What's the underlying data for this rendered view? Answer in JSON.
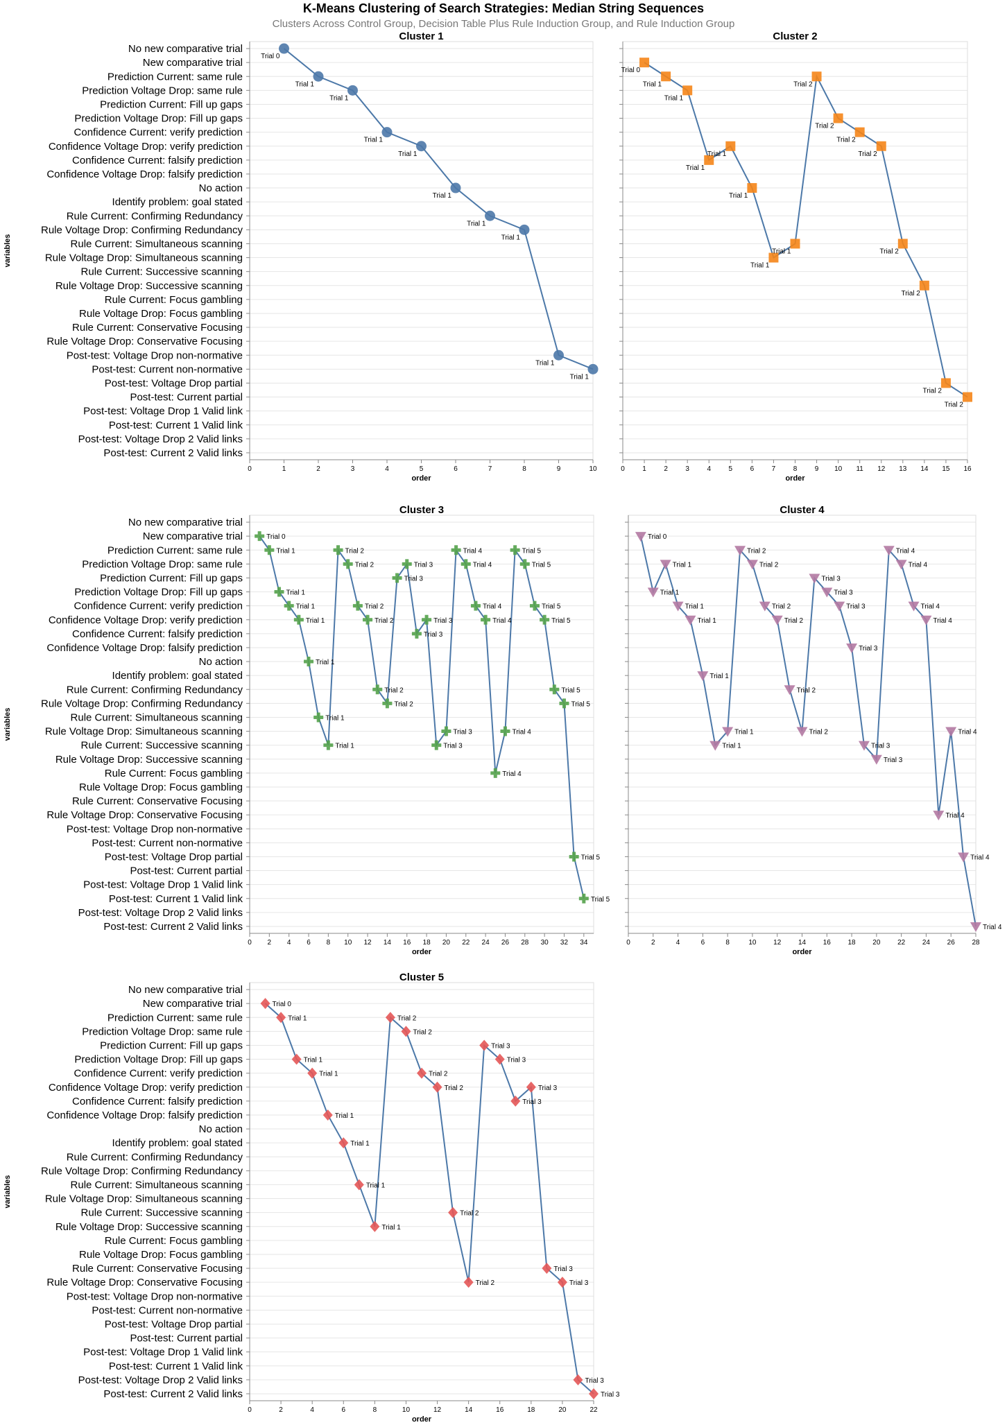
{
  "title": "K-Means Clustering of Search Strategies: Median String Sequences",
  "subtitle": "Clusters Across Control Group, Decision Table Plus Rule Induction Group, and Rule Induction Group",
  "chart_data": {
    "type": "line",
    "xlabel": "order",
    "ylabel": "variables",
    "line_color": "#4c78a8",
    "grid": true,
    "categories_default": [
      "No new comparative trial",
      "New comparative trial",
      "Prediction Current: same rule",
      "Prediction Voltage Drop: same rule",
      "Prediction Current: Fill up gaps",
      "Prediction Voltage Drop: Fill up gaps",
      "Confidence Current: verify prediction",
      "Confidence Voltage Drop: verify prediction",
      "Confidence Current: falsify prediction",
      "Confidence Voltage Drop: falsify prediction",
      "No action",
      "Identify problem: goal stated",
      "Rule Current: Confirming Redundancy",
      "Rule Voltage Drop: Confirming Redundancy",
      "Rule Current: Simultaneous scanning",
      "Rule Voltage Drop: Simultaneous scanning",
      "Rule Current: Successive scanning",
      "Rule Voltage Drop: Successive scanning",
      "Rule Current: Focus gambling",
      "Rule Voltage Drop: Focus gambling",
      "Rule Current: Conservative Focusing",
      "Rule Voltage Drop: Conservative Focusing",
      "Post-test: Voltage Drop non-normative",
      "Post-test: Current non-normative",
      "Post-test: Voltage Drop partial",
      "Post-test: Current partial",
      "Post-test: Voltage Drop 1 Valid link",
      "Post-test: Current 1 Valid link",
      "Post-test: Voltage Drop 2 Valid links",
      "Post-test: Current 2 Valid links"
    ],
    "categories_c1c2": [
      "No new comparative trial",
      "New comparative trial",
      "Prediction Current: same rule",
      "Prediction Voltage Drop: same rule",
      "Prediction Current: Fill up gaps",
      "Prediction Voltage Drop: Fill up gaps",
      "Confidence Current: verify prediction",
      "Confidence Voltage Drop: verify prediction",
      "Confidence Current: falsify prediction",
      "Confidence Voltage Drop: falsify prediction",
      "No action",
      "Identify problem: goal stated",
      "Rule Current: Confirming Redundancy",
      "Rule Voltage Drop: Confirming Redundancy",
      "Rule Current: Simultaneous scanning",
      "Rule Voltage Drop: Simultaneous scanning",
      "Rule Current: Successive scanning",
      "Rule Voltage Drop: Successive scanning",
      "Rule Current: Focus gambling",
      "Rule Voltage Drop: Focus gambling",
      "Rule Current: Conservative Focusing",
      "Rule Voltage Drop: Conservative Focusing",
      "Post-test: Voltage Drop non-normative",
      "Post-test: Current non-normative",
      "Post-test: Voltage Drop partial",
      "Post-test: Current partial",
      "Post-test: Voltage Drop 1 Valid link",
      "Post-test: Current 1 Valid link",
      "Post-test: Voltage Drop 2 Valid links",
      "Post-test: Current 2 Valid links"
    ],
    "panels": [
      {
        "title": "Cluster 1",
        "shape": "circle",
        "color": "#4c78a8",
        "xlim": [
          0,
          10
        ],
        "ticks": [
          0,
          1,
          2,
          3,
          4,
          5,
          6,
          7,
          8,
          9,
          10
        ],
        "label_side": "below-left",
        "points": [
          {
            "x": 1,
            "y": "No new comparative trial",
            "label": "Trial 0"
          },
          {
            "x": 2,
            "y": "Prediction Current: same rule",
            "label": "Trial 1"
          },
          {
            "x": 3,
            "y": "Prediction Voltage Drop: same rule",
            "label": "Trial 1"
          },
          {
            "x": 4,
            "y": "Confidence Current: verify prediction",
            "label": "Trial 1"
          },
          {
            "x": 5,
            "y": "Confidence Voltage Drop: verify prediction",
            "label": "Trial 1"
          },
          {
            "x": 6,
            "y": "No action",
            "label": "Trial 1"
          },
          {
            "x": 7,
            "y": "Rule Current: Confirming Redundancy",
            "label": "Trial 1"
          },
          {
            "x": 8,
            "y": "Rule Voltage Drop: Confirming Redundancy",
            "label": "Trial 1"
          },
          {
            "x": 9,
            "y": "Post-test: Voltage Drop non-normative",
            "label": "Trial 1"
          },
          {
            "x": 10,
            "y": "Post-test: Current non-normative",
            "label": "Trial 1"
          }
        ]
      },
      {
        "title": "Cluster 2",
        "shape": "square",
        "color": "#f58518",
        "xlim": [
          0,
          16
        ],
        "ticks": [
          0,
          1,
          2,
          3,
          4,
          5,
          6,
          7,
          8,
          9,
          10,
          11,
          12,
          13,
          14,
          15,
          16
        ],
        "label_side": "below-left",
        "points": [
          {
            "x": 1,
            "y": "New comparative trial",
            "label": "Trial 0"
          },
          {
            "x": 2,
            "y": "Prediction Current: same rule",
            "label": "Trial 1"
          },
          {
            "x": 3,
            "y": "Prediction Voltage Drop: same rule",
            "label": "Trial 1"
          },
          {
            "x": 4,
            "y": "Confidence Current: falsify prediction",
            "label": "Trial 1"
          },
          {
            "x": 5,
            "y": "Confidence Voltage Drop: verify prediction",
            "label": "Trial 1"
          },
          {
            "x": 6,
            "y": "No action",
            "label": "Trial 1"
          },
          {
            "x": 7,
            "y": "Rule Voltage Drop: Simultaneous scanning",
            "label": "Trial 1"
          },
          {
            "x": 8,
            "y": "Rule Current: Simultaneous scanning",
            "label": "Trial 1"
          },
          {
            "x": 9,
            "y": "Prediction Current: same rule",
            "label": "Trial 2"
          },
          {
            "x": 10,
            "y": "Prediction Voltage Drop: Fill up gaps",
            "label": "Trial 2"
          },
          {
            "x": 11,
            "y": "Confidence Current: verify prediction",
            "label": "Trial 2"
          },
          {
            "x": 12,
            "y": "Confidence Voltage Drop: verify prediction",
            "label": "Trial 2"
          },
          {
            "x": 13,
            "y": "Rule Current: Simultaneous scanning",
            "label": "Trial 2"
          },
          {
            "x": 14,
            "y": "Rule Voltage Drop: Successive scanning",
            "label": "Trial 2"
          },
          {
            "x": 15,
            "y": "Post-test: Voltage Drop partial",
            "label": "Trial 2"
          },
          {
            "x": 16,
            "y": "Post-test: Current partial",
            "label": "Trial 2"
          }
        ]
      },
      {
        "title": "Cluster 3",
        "shape": "cross",
        "color": "#54a24b",
        "xlim": [
          0,
          35
        ],
        "ticks": [
          0,
          2,
          4,
          6,
          8,
          10,
          12,
          14,
          16,
          18,
          20,
          22,
          24,
          26,
          28,
          30,
          32,
          34
        ],
        "label_side": "right",
        "points": [
          {
            "x": 1,
            "y": "New comparative trial",
            "label": "Trial 0"
          },
          {
            "x": 2,
            "y": "Prediction Current: same rule",
            "label": "Trial 1"
          },
          {
            "x": 3,
            "y": "Prediction Voltage Drop: Fill up gaps",
            "label": "Trial 1"
          },
          {
            "x": 4,
            "y": "Confidence Current: verify prediction",
            "label": "Trial 1"
          },
          {
            "x": 5,
            "y": "Confidence Voltage Drop: verify prediction",
            "label": "Trial 1"
          },
          {
            "x": 6,
            "y": "No action",
            "label": "Trial 1"
          },
          {
            "x": 7,
            "y": "Rule Current: Simultaneous scanning",
            "label": "Trial 1"
          },
          {
            "x": 8,
            "y": "Rule Current: Successive scanning",
            "label": "Trial 1"
          },
          {
            "x": 9,
            "y": "Prediction Current: same rule",
            "label": "Trial 2"
          },
          {
            "x": 10,
            "y": "Prediction Voltage Drop: same rule",
            "label": "Trial 2"
          },
          {
            "x": 11,
            "y": "Confidence Current: verify prediction",
            "label": "Trial 2"
          },
          {
            "x": 12,
            "y": "Confidence Voltage Drop: verify prediction",
            "label": "Trial 2"
          },
          {
            "x": 13,
            "y": "Rule Current: Confirming Redundancy",
            "label": "Trial 2"
          },
          {
            "x": 14,
            "y": "Rule Voltage Drop: Confirming Redundancy",
            "label": "Trial 2"
          },
          {
            "x": 15,
            "y": "Prediction Current: Fill up gaps",
            "label": "Trial 3"
          },
          {
            "x": 16,
            "y": "Prediction Voltage Drop: same rule",
            "label": "Trial 3"
          },
          {
            "x": 17,
            "y": "Confidence Current: falsify prediction",
            "label": "Trial 3"
          },
          {
            "x": 18,
            "y": "Confidence Voltage Drop: verify prediction",
            "label": "Trial 3"
          },
          {
            "x": 19,
            "y": "Rule Current: Successive scanning",
            "label": "Trial 3"
          },
          {
            "x": 20,
            "y": "Rule Voltage Drop: Simultaneous scanning",
            "label": "Trial 3"
          },
          {
            "x": 21,
            "y": "Prediction Current: same rule",
            "label": "Trial 4"
          },
          {
            "x": 22,
            "y": "Prediction Voltage Drop: same rule",
            "label": "Trial 4"
          },
          {
            "x": 23,
            "y": "Confidence Current: verify prediction",
            "label": "Trial 4"
          },
          {
            "x": 24,
            "y": "Confidence Voltage Drop: verify prediction",
            "label": "Trial 4"
          },
          {
            "x": 25,
            "y": "Rule Current: Focus gambling",
            "label": "Trial 4"
          },
          {
            "x": 26,
            "y": "Rule Voltage Drop: Simultaneous scanning",
            "label": "Trial 4"
          },
          {
            "x": 27,
            "y": "Prediction Current: same rule",
            "label": "Trial 5"
          },
          {
            "x": 28,
            "y": "Prediction Voltage Drop: same rule",
            "label": "Trial 5"
          },
          {
            "x": 29,
            "y": "Confidence Current: verify prediction",
            "label": "Trial 5"
          },
          {
            "x": 30,
            "y": "Confidence Voltage Drop: verify prediction",
            "label": "Trial 5"
          },
          {
            "x": 31,
            "y": "Rule Current: Confirming Redundancy",
            "label": "Trial 5"
          },
          {
            "x": 32,
            "y": "Rule Voltage Drop: Confirming Redundancy",
            "label": "Trial 5"
          },
          {
            "x": 33,
            "y": "Post-test: Voltage Drop partial",
            "label": "Trial 5"
          },
          {
            "x": 34,
            "y": "Post-test: Current 1 Valid link",
            "label": "Trial 5"
          }
        ]
      },
      {
        "title": "Cluster 4",
        "shape": "triangle-down",
        "color": "#b279a2",
        "xlim": [
          0,
          28
        ],
        "ticks": [
          0,
          2,
          4,
          6,
          8,
          10,
          12,
          14,
          16,
          18,
          20,
          22,
          24,
          26,
          28
        ],
        "label_side": "right",
        "points": [
          {
            "x": 1,
            "y": "New comparative trial",
            "label": "Trial 0"
          },
          {
            "x": 2,
            "y": "Prediction Voltage Drop: Fill up gaps",
            "label": "Trial 1"
          },
          {
            "x": 3,
            "y": "Prediction Voltage Drop: same rule",
            "label": "Trial 1"
          },
          {
            "x": 4,
            "y": "Confidence Current: verify prediction",
            "label": "Trial 1"
          },
          {
            "x": 5,
            "y": "Confidence Voltage Drop: verify prediction",
            "label": "Trial 1"
          },
          {
            "x": 6,
            "y": "Identify problem: goal stated",
            "label": "Trial 1"
          },
          {
            "x": 7,
            "y": "Rule Current: Successive scanning",
            "label": "Trial 1"
          },
          {
            "x": 8,
            "y": "Rule Voltage Drop: Simultaneous scanning",
            "label": "Trial 1"
          },
          {
            "x": 9,
            "y": "Prediction Current: same rule",
            "label": "Trial 2"
          },
          {
            "x": 10,
            "y": "Prediction Voltage Drop: same rule",
            "label": "Trial 2"
          },
          {
            "x": 11,
            "y": "Confidence Current: verify prediction",
            "label": "Trial 2"
          },
          {
            "x": 12,
            "y": "Confidence Voltage Drop: verify prediction",
            "label": "Trial 2"
          },
          {
            "x": 13,
            "y": "Rule Current: Confirming Redundancy",
            "label": "Trial 2"
          },
          {
            "x": 14,
            "y": "Rule Voltage Drop: Simultaneous scanning",
            "label": "Trial 2"
          },
          {
            "x": 15,
            "y": "Prediction Current: Fill up gaps",
            "label": "Trial 3"
          },
          {
            "x": 16,
            "y": "Prediction Voltage Drop: Fill up gaps",
            "label": "Trial 3"
          },
          {
            "x": 17,
            "y": "Confidence Current: verify prediction",
            "label": "Trial 3"
          },
          {
            "x": 18,
            "y": "Confidence Voltage Drop: falsify prediction",
            "label": "Trial 3"
          },
          {
            "x": 19,
            "y": "Rule Current: Successive scanning",
            "label": "Trial 3"
          },
          {
            "x": 20,
            "y": "Rule Voltage Drop: Successive scanning",
            "label": "Trial 3"
          },
          {
            "x": 21,
            "y": "Prediction Current: same rule",
            "label": "Trial 4"
          },
          {
            "x": 22,
            "y": "Prediction Voltage Drop: same rule",
            "label": "Trial 4"
          },
          {
            "x": 23,
            "y": "Confidence Current: verify prediction",
            "label": "Trial 4"
          },
          {
            "x": 24,
            "y": "Confidence Voltage Drop: verify prediction",
            "label": "Trial 4"
          },
          {
            "x": 25,
            "y": "Rule Voltage Drop: Conservative Focusing",
            "label": "Trial 4"
          },
          {
            "x": 26,
            "y": "Rule Voltage Drop: Simultaneous scanning",
            "label": "Trial 4"
          },
          {
            "x": 27,
            "y": "Post-test: Voltage Drop partial",
            "label": "Trial 4"
          },
          {
            "x": 28,
            "y": "Post-test: Current 2 Valid links",
            "label": "Trial 4"
          }
        ]
      },
      {
        "title": "Cluster 5",
        "shape": "diamond",
        "color": "#e45756",
        "xlim": [
          0,
          22
        ],
        "ticks": [
          0,
          2,
          4,
          6,
          8,
          10,
          12,
          14,
          16,
          18,
          20,
          22
        ],
        "label_side": "right",
        "points": [
          {
            "x": 1,
            "y": "New comparative trial",
            "label": "Trial 0"
          },
          {
            "x": 2,
            "y": "Prediction Current: same rule",
            "label": "Trial 1"
          },
          {
            "x": 3,
            "y": "Prediction Voltage Drop: Fill up gaps",
            "label": "Trial 1"
          },
          {
            "x": 4,
            "y": "Confidence Current: verify prediction",
            "label": "Trial 1"
          },
          {
            "x": 5,
            "y": "Confidence Voltage Drop: falsify prediction",
            "label": "Trial 1"
          },
          {
            "x": 6,
            "y": "Identify problem: goal stated",
            "label": "Trial 1"
          },
          {
            "x": 7,
            "y": "Rule Current: Simultaneous scanning",
            "label": "Trial 1"
          },
          {
            "x": 8,
            "y": "Rule Voltage Drop: Successive scanning",
            "label": "Trial 1"
          },
          {
            "x": 9,
            "y": "Prediction Current: same rule",
            "label": "Trial 2"
          },
          {
            "x": 10,
            "y": "Prediction Voltage Drop: same rule",
            "label": "Trial 2"
          },
          {
            "x": 11,
            "y": "Confidence Current: verify prediction",
            "label": "Trial 2"
          },
          {
            "x": 12,
            "y": "Confidence Voltage Drop: verify prediction",
            "label": "Trial 2"
          },
          {
            "x": 13,
            "y": "Rule Current: Successive scanning",
            "label": "Trial 2"
          },
          {
            "x": 14,
            "y": "Rule Voltage Drop: Conservative Focusing",
            "label": "Trial 2"
          },
          {
            "x": 15,
            "y": "Prediction Current: Fill up gaps",
            "label": "Trial 3"
          },
          {
            "x": 16,
            "y": "Prediction Voltage Drop: Fill up gaps",
            "label": "Trial 3"
          },
          {
            "x": 17,
            "y": "Confidence Current: falsify prediction",
            "label": "Trial 3"
          },
          {
            "x": 18,
            "y": "Confidence Voltage Drop: verify prediction",
            "label": "Trial 3"
          },
          {
            "x": 19,
            "y": "Rule Current: Conservative Focusing",
            "label": "Trial 3"
          },
          {
            "x": 20,
            "y": "Rule Voltage Drop: Conservative Focusing",
            "label": "Trial 3"
          },
          {
            "x": 21,
            "y": "Post-test: Voltage Drop 2 Valid links",
            "label": "Trial 3"
          },
          {
            "x": 22,
            "y": "Post-test: Current 2 Valid links",
            "label": "Trial 3"
          }
        ]
      }
    ]
  }
}
